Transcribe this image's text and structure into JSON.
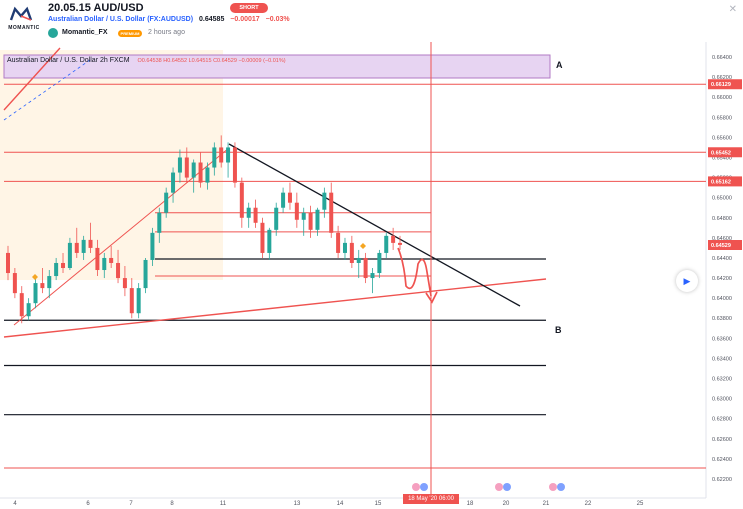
{
  "idea": {
    "title": "20.05.15 AUD/USD",
    "symbol_name": "Australian Dollar / U.S. Dollar (FX:AUDUSD)",
    "price": "0.64585",
    "change": "−0.00017",
    "change_pct": "−0.03%",
    "direction_badge": "SHORT",
    "author": "Momantic_FX",
    "author_badge": "PREMIUM",
    "published": "2 hours ago",
    "brand": "MOMANTIC"
  },
  "legend": {
    "symbol": "Australian Dollar / U.S. Dollar",
    "interval": "2h",
    "exchange": "FXCM",
    "ohlc": "O0.64538 H0.64552 L0.64515 C0.64529 −0.00009 (−0.01%)"
  },
  "annotations": {
    "a_label": "A",
    "b_label": "B"
  },
  "date_marker": "18 May '20 06:00",
  "chart_data": {
    "type": "candlestick",
    "symbol": "FX:AUDUSD",
    "interval": "2h",
    "y_axis": {
      "ticks": [
        "0.66400",
        "0.66200",
        "0.66000",
        "0.65800",
        "0.65600",
        "0.65400",
        "0.65200",
        "0.65000",
        "0.64800",
        "0.64600",
        "0.64400",
        "0.64200",
        "0.64000",
        "0.63800",
        "0.63600",
        "0.63400",
        "0.63200",
        "0.63000",
        "0.62800",
        "0.62600",
        "0.62400",
        "0.62200"
      ],
      "range": [
        0.6222,
        0.6642
      ]
    },
    "x_axis": {
      "ticks": [
        "4",
        "6",
        "7",
        "8",
        "11",
        "13",
        "14",
        "15",
        "18",
        "20",
        "21",
        "22",
        "25"
      ]
    },
    "price_labels": [
      {
        "value": "0.66129",
        "color": "#ef5350"
      },
      {
        "value": "0.65452",
        "color": "#ef5350"
      },
      {
        "value": "0.65162",
        "color": "#ef5350"
      },
      {
        "value": "0.64529",
        "color": "#ef5350"
      }
    ],
    "horizontal_levels_red": [
      0.66129,
      0.65452,
      0.65162,
      0.6485,
      0.6466,
      0.6422,
      0.6231
    ],
    "horizontal_levels_black": [
      0.6439,
      0.6378,
      0.6333,
      0.6284
    ],
    "candles": [
      [
        0.6445,
        0.6452,
        0.6418,
        0.6425
      ],
      [
        0.6425,
        0.643,
        0.64,
        0.6405
      ],
      [
        0.6405,
        0.6412,
        0.6375,
        0.6382
      ],
      [
        0.6382,
        0.64,
        0.6378,
        0.6395
      ],
      [
        0.6395,
        0.642,
        0.639,
        0.6415
      ],
      [
        0.6415,
        0.643,
        0.6405,
        0.641
      ],
      [
        0.641,
        0.6428,
        0.64,
        0.6422
      ],
      [
        0.6422,
        0.644,
        0.6418,
        0.6435
      ],
      [
        0.6435,
        0.6445,
        0.6425,
        0.643
      ],
      [
        0.643,
        0.646,
        0.6428,
        0.6455
      ],
      [
        0.6455,
        0.647,
        0.644,
        0.6445
      ],
      [
        0.6445,
        0.6462,
        0.6438,
        0.6458
      ],
      [
        0.6458,
        0.6475,
        0.6445,
        0.645
      ],
      [
        0.645,
        0.6458,
        0.6422,
        0.6428
      ],
      [
        0.6428,
        0.6445,
        0.642,
        0.644
      ],
      [
        0.644,
        0.6452,
        0.643,
        0.6435
      ],
      [
        0.6435,
        0.6448,
        0.6415,
        0.642
      ],
      [
        0.642,
        0.6432,
        0.6402,
        0.641
      ],
      [
        0.641,
        0.642,
        0.638,
        0.6385
      ],
      [
        0.6385,
        0.6415,
        0.638,
        0.641
      ],
      [
        0.641,
        0.644,
        0.6405,
        0.6438
      ],
      [
        0.6438,
        0.647,
        0.6432,
        0.6465
      ],
      [
        0.6465,
        0.649,
        0.6455,
        0.6485
      ],
      [
        0.6485,
        0.651,
        0.648,
        0.6505
      ],
      [
        0.6505,
        0.653,
        0.6495,
        0.6525
      ],
      [
        0.6525,
        0.6548,
        0.6515,
        0.654
      ],
      [
        0.654,
        0.655,
        0.6515,
        0.652
      ],
      [
        0.652,
        0.6538,
        0.6505,
        0.6535
      ],
      [
        0.6535,
        0.6545,
        0.651,
        0.6515
      ],
      [
        0.6515,
        0.6535,
        0.6508,
        0.653
      ],
      [
        0.653,
        0.6555,
        0.6522,
        0.655
      ],
      [
        0.655,
        0.6562,
        0.653,
        0.6535
      ],
      [
        0.6535,
        0.6555,
        0.652,
        0.655
      ],
      [
        0.655,
        0.6555,
        0.651,
        0.6515
      ],
      [
        0.6515,
        0.652,
        0.647,
        0.648
      ],
      [
        0.648,
        0.6495,
        0.647,
        0.649
      ],
      [
        0.649,
        0.6498,
        0.647,
        0.6475
      ],
      [
        0.6475,
        0.648,
        0.644,
        0.6445
      ],
      [
        0.6445,
        0.647,
        0.6438,
        0.6468
      ],
      [
        0.6468,
        0.6495,
        0.6462,
        0.649
      ],
      [
        0.649,
        0.651,
        0.6485,
        0.6505
      ],
      [
        0.6505,
        0.6515,
        0.6488,
        0.6495
      ],
      [
        0.6495,
        0.6505,
        0.647,
        0.6478
      ],
      [
        0.6478,
        0.649,
        0.6462,
        0.6485
      ],
      [
        0.6485,
        0.6492,
        0.646,
        0.6468
      ],
      [
        0.6468,
        0.649,
        0.6462,
        0.6488
      ],
      [
        0.6488,
        0.651,
        0.648,
        0.6505
      ],
      [
        0.6505,
        0.6515,
        0.646,
        0.6465
      ],
      [
        0.6465,
        0.6472,
        0.644,
        0.6445
      ],
      [
        0.6445,
        0.646,
        0.6438,
        0.6455
      ],
      [
        0.6455,
        0.6462,
        0.643,
        0.6435
      ],
      [
        0.6435,
        0.6448,
        0.642,
        0.644
      ],
      [
        0.644,
        0.6445,
        0.6415,
        0.642
      ],
      [
        0.642,
        0.643,
        0.6405,
        0.6425
      ],
      [
        0.6425,
        0.6448,
        0.642,
        0.6445
      ],
      [
        0.6445,
        0.6465,
        0.644,
        0.6462
      ],
      [
        0.6462,
        0.647,
        0.6448,
        0.6455
      ],
      [
        0.6455,
        0.6462,
        0.6448,
        0.6453
      ]
    ],
    "projection": "down toward 0.6410",
    "grid": false
  }
}
